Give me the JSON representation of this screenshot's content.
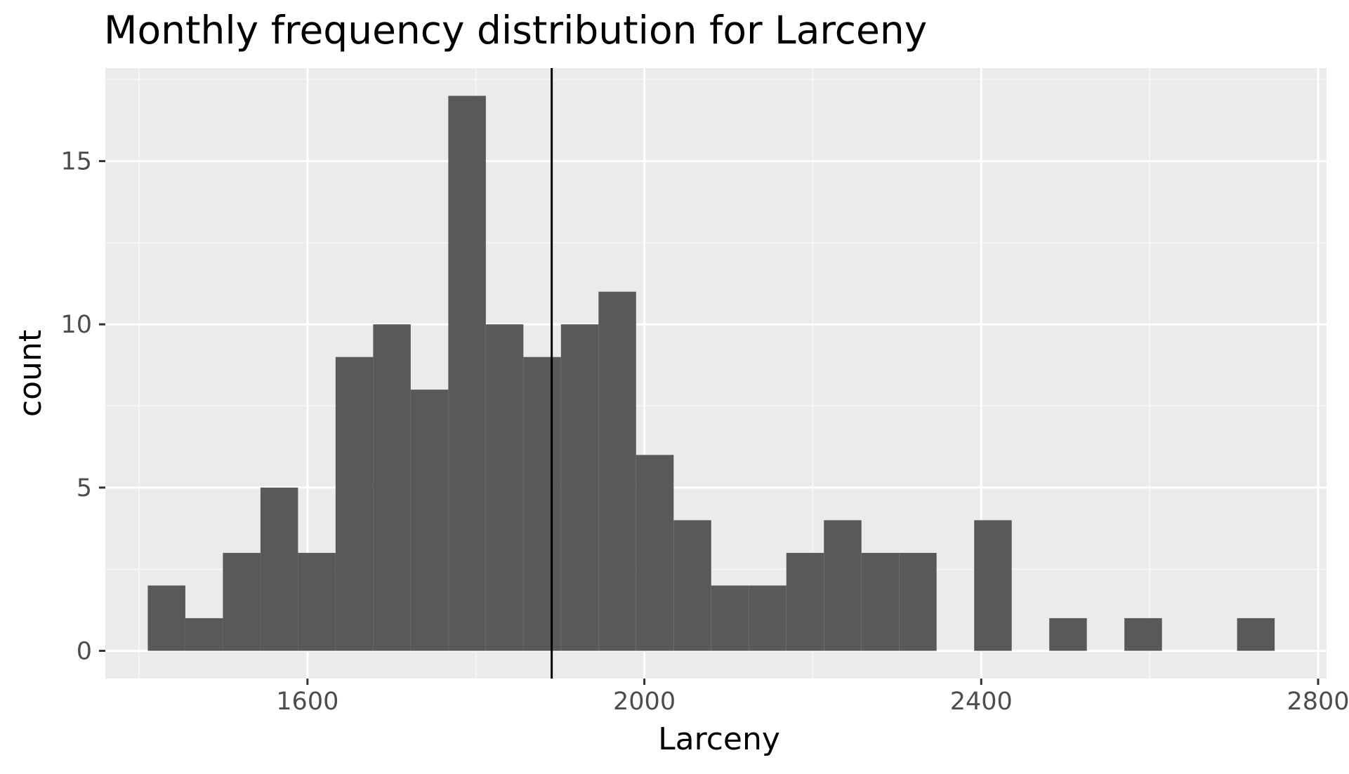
{
  "chart_data": {
    "type": "bar",
    "title": "Monthly frequency distribution for Larceny",
    "xlabel": "Larceny",
    "ylabel": "count",
    "xlim": [
      1360,
      2810
    ],
    "ylim": [
      -0.85,
      17.85
    ],
    "x_ticks": [
      1600,
      2000,
      2400,
      2800
    ],
    "x_tick_labels": [
      "1600",
      "2000",
      "2400",
      "2800"
    ],
    "y_ticks": [
      0,
      5,
      10,
      15
    ],
    "y_tick_labels": [
      "0",
      "5",
      "10",
      "15"
    ],
    "x_minor_grid": [
      1400,
      1800,
      2200,
      2600
    ],
    "y_minor_grid": [
      2.5,
      7.5,
      12.5,
      17.5
    ],
    "bin_width": 44.6,
    "bins": [
      {
        "x": 1432.7,
        "count": 2
      },
      {
        "x": 1477.3,
        "count": 1
      },
      {
        "x": 1521.9,
        "count": 3
      },
      {
        "x": 1566.5,
        "count": 5
      },
      {
        "x": 1611.1,
        "count": 3
      },
      {
        "x": 1655.7,
        "count": 9
      },
      {
        "x": 1700.3,
        "count": 10
      },
      {
        "x": 1744.9,
        "count": 8
      },
      {
        "x": 1789.5,
        "count": 17
      },
      {
        "x": 1834.1,
        "count": 10
      },
      {
        "x": 1878.7,
        "count": 9
      },
      {
        "x": 1923.3,
        "count": 10
      },
      {
        "x": 1967.9,
        "count": 11
      },
      {
        "x": 2012.5,
        "count": 6
      },
      {
        "x": 2057.1,
        "count": 4
      },
      {
        "x": 2101.7,
        "count": 2
      },
      {
        "x": 2146.3,
        "count": 2
      },
      {
        "x": 2190.9,
        "count": 3
      },
      {
        "x": 2235.5,
        "count": 4
      },
      {
        "x": 2280.1,
        "count": 3
      },
      {
        "x": 2324.7,
        "count": 3
      },
      {
        "x": 2369.3,
        "count": 0
      },
      {
        "x": 2413.9,
        "count": 4
      },
      {
        "x": 2458.5,
        "count": 0
      },
      {
        "x": 2503.1,
        "count": 1
      },
      {
        "x": 2547.7,
        "count": 0
      },
      {
        "x": 2592.3,
        "count": 1
      },
      {
        "x": 2636.9,
        "count": 0
      },
      {
        "x": 2681.5,
        "count": 0
      },
      {
        "x": 2726.1,
        "count": 1
      }
    ],
    "reference_line_x": 1890,
    "grid": true,
    "legend": "none",
    "colors": {
      "panel_background": "#ebebeb",
      "grid_major": "#ffffff",
      "grid_minor": "#f7f7f7",
      "bar_fill": "#595959",
      "reference_line": "#000000",
      "tick_mark": "#333333",
      "tick_label": "#4d4d4d",
      "text": "#000000"
    }
  }
}
